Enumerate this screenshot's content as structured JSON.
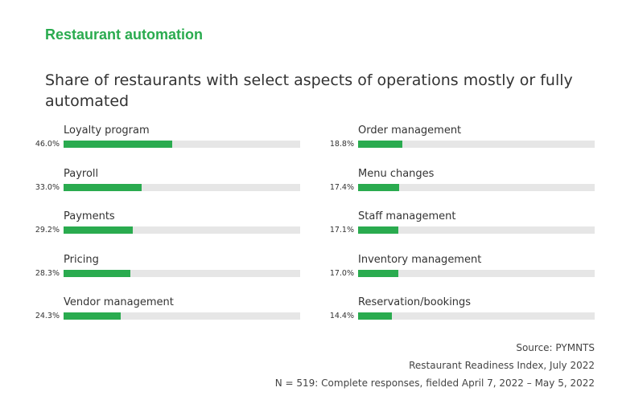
{
  "header": {
    "headline": "Restaurant automation",
    "subtitle": "Share of restaurants with select aspects of operations mostly or fully automated"
  },
  "chart_data": {
    "type": "bar",
    "orientation": "horizontal",
    "value_unit": "%",
    "xlim": [
      0,
      100
    ],
    "grid": false,
    "columns": [
      {
        "items": [
          {
            "category": "Loyalty program",
            "value": 46.0,
            "label": "46.0%"
          },
          {
            "category": "Payroll",
            "value": 33.0,
            "label": "33.0%"
          },
          {
            "category": "Payments",
            "value": 29.2,
            "label": "29.2%"
          },
          {
            "category": "Pricing",
            "value": 28.3,
            "label": "28.3%"
          },
          {
            "category": "Vendor management",
            "value": 24.3,
            "label": "24.3%"
          }
        ]
      },
      {
        "items": [
          {
            "category": "Order management",
            "value": 18.8,
            "label": "18.8%"
          },
          {
            "category": "Menu changes",
            "value": 17.4,
            "label": "17.4%"
          },
          {
            "category": "Staff management",
            "value": 17.1,
            "label": "17.1%"
          },
          {
            "category": "Inventory management",
            "value": 17.0,
            "label": "17.0%"
          },
          {
            "category": "Reservation/bookings",
            "value": 14.4,
            "label": "14.4%"
          }
        ]
      }
    ]
  },
  "footer": {
    "source": "Source: PYMNTS",
    "report": "Restaurant Readiness Index, July 2022",
    "sample": "N = 519: Complete responses, fielded April 7, 2022 – May 5, 2022"
  },
  "colors": {
    "accent": "#2aab4f",
    "track": "#e6e6e6",
    "text": "#333333"
  }
}
